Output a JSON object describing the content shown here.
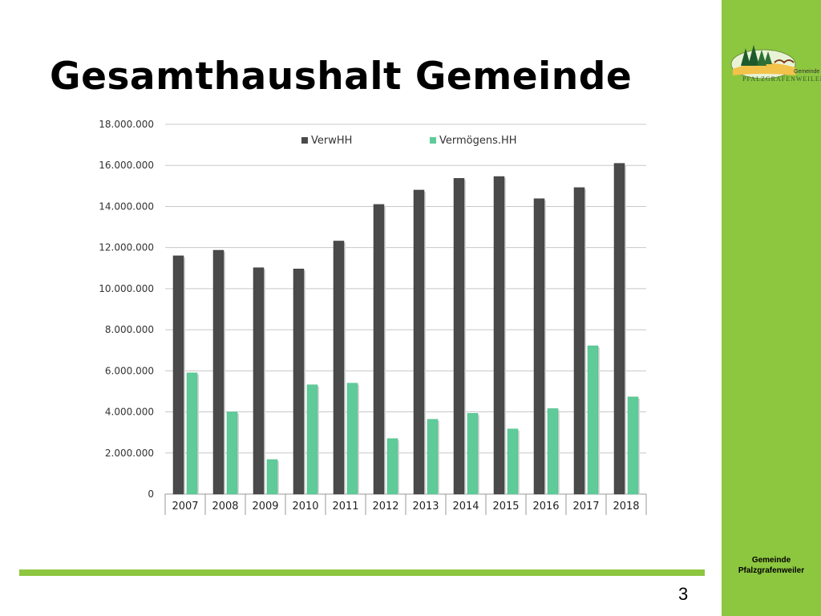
{
  "slide": {
    "title": "Gesamthaushalt Gemeinde",
    "page_number": "3",
    "footer_line1": "Gemeinde",
    "footer_line2": "Pfalzgrafenweiler",
    "logo_small": "Gemeinde",
    "logo_brand": "PFALZGRAFENWEILER",
    "colors": {
      "sidebar": "#8dc63f",
      "bar_bottom": "#8dc63f"
    }
  },
  "chart_data": {
    "type": "bar",
    "categories": [
      "2007",
      "2008",
      "2009",
      "2010",
      "2011",
      "2012",
      "2013",
      "2014",
      "2015",
      "2016",
      "2017",
      "2018"
    ],
    "series": [
      {
        "name": "VerwHH",
        "color": "#4a4a4a",
        "values": [
          11600000,
          11870000,
          11020000,
          10960000,
          12320000,
          14100000,
          14800000,
          15370000,
          15460000,
          14380000,
          14920000,
          16100000
        ]
      },
      {
        "name": "Vermögens.HH",
        "color": "#5ecb98",
        "values": [
          5900000,
          4000000,
          1680000,
          5320000,
          5400000,
          2700000,
          3640000,
          3930000,
          3170000,
          4160000,
          7220000,
          4730000
        ]
      }
    ],
    "ylim": [
      0,
      18000000
    ],
    "yticks": [
      0,
      2000000,
      4000000,
      6000000,
      8000000,
      10000000,
      12000000,
      14000000,
      16000000,
      18000000
    ],
    "ytick_labels": [
      "0",
      "2.000.000",
      "4.000.000",
      "6.000.000",
      "8.000.000",
      "10.000.000",
      "12.000.000",
      "14.000.000",
      "16.000.000",
      "18.000.000"
    ],
    "grid": true,
    "legend_position": "top-right"
  }
}
